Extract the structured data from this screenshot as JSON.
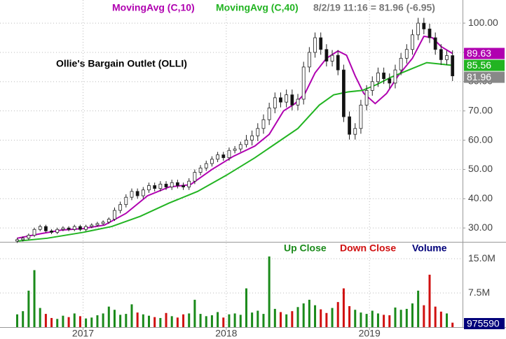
{
  "chart_data": {
    "type": "candlestick",
    "title": "Ollie's Bargain Outlet (OLLI)",
    "header": "8/2/19 11:16 = 81.96 (-6.95)",
    "x": [
      2016.54,
      2016.58,
      2016.62,
      2016.66,
      2016.7,
      2016.74,
      2016.78,
      2016.82,
      2016.86,
      2016.9,
      2016.94,
      2016.98,
      2017.02,
      2017.06,
      2017.1,
      2017.14,
      2017.18,
      2017.22,
      2017.26,
      2017.3,
      2017.34,
      2017.38,
      2017.42,
      2017.46,
      2017.5,
      2017.54,
      2017.58,
      2017.62,
      2017.66,
      2017.7,
      2017.74,
      2017.78,
      2017.82,
      2017.86,
      2017.9,
      2017.94,
      2017.98,
      2018.02,
      2018.06,
      2018.1,
      2018.14,
      2018.18,
      2018.22,
      2018.26,
      2018.3,
      2018.34,
      2018.38,
      2018.42,
      2018.46,
      2018.5,
      2018.54,
      2018.58,
      2018.62,
      2018.66,
      2018.7,
      2018.74,
      2018.78,
      2018.82,
      2018.86,
      2018.9,
      2018.94,
      2018.98,
      2019.02,
      2019.06,
      2019.1,
      2019.14,
      2019.18,
      2019.22,
      2019.26,
      2019.3,
      2019.34,
      2019.38,
      2019.42,
      2019.46,
      2019.5,
      2019.54,
      2019.58
    ],
    "open": [
      25.5,
      26.0,
      26.5,
      27.5,
      29.5,
      30.5,
      29.0,
      28.5,
      29.5,
      30.0,
      29.5,
      30.5,
      29.5,
      30.5,
      31.0,
      31.5,
      32.0,
      33.0,
      36.0,
      38.0,
      40.5,
      42.5,
      41.0,
      43.0,
      44.5,
      43.5,
      45.0,
      44.0,
      45.5,
      44.5,
      44.0,
      46.0,
      49.0,
      50.5,
      52.0,
      53.5,
      55.0,
      54.0,
      56.5,
      57.0,
      58.5,
      60.0,
      61.5,
      64.0,
      67.0,
      71.0,
      74.5,
      73.0,
      75.5,
      72.0,
      74.0,
      85.0,
      90.0,
      95.0,
      91.0,
      87.0,
      89.0,
      84.0,
      68.0,
      62.0,
      64.0,
      72.0,
      77.0,
      80.0,
      83.0,
      81.0,
      79.5,
      84.0,
      88.0,
      91.0,
      96.0,
      100.0,
      98.0,
      95.0,
      91.0,
      87.5,
      88.91
    ],
    "high": [
      26.6,
      27.1,
      28.1,
      30.1,
      31.1,
      31.1,
      29.6,
      30.1,
      30.6,
      30.6,
      31.1,
      31.1,
      31.1,
      31.6,
      32.1,
      32.6,
      33.6,
      37,
      39,
      41.5,
      43.5,
      43.5,
      44,
      45.5,
      45.5,
      46,
      46,
      46.5,
      46.5,
      45.5,
      47,
      50,
      51.5,
      53,
      54.5,
      56,
      56,
      57.5,
      58,
      59.5,
      61.8,
      63.3,
      65.8,
      68.8,
      72.8,
      76.3,
      76.3,
      77.3,
      77.3,
      75.8,
      86.8,
      91.8,
      96.8,
      96.8,
      92.8,
      90.8,
      90.8,
      85.8,
      69.8,
      65.8,
      73.8,
      78.8,
      81.8,
      84.8,
      84.8,
      82.8,
      85.8,
      89.8,
      92.8,
      97.8,
      101.8,
      101.8,
      99.8,
      96.8,
      92.8,
      90.7,
      90.7
    ],
    "low": [
      24.9,
      25.4,
      25.9,
      26.9,
      28.9,
      28.4,
      27.9,
      27.9,
      28.9,
      28.9,
      28.9,
      28.9,
      28.9,
      29.9,
      30.4,
      30.9,
      31.4,
      32.4,
      35,
      37,
      39.5,
      40,
      40,
      42,
      42.5,
      42.5,
      43,
      43,
      43.5,
      43,
      43,
      45,
      48,
      49.5,
      51,
      52.5,
      53,
      53,
      55.5,
      56,
      57.5,
      58.2,
      59.7,
      62.2,
      65.2,
      69.2,
      71.2,
      71.2,
      70.2,
      70.2,
      72.2,
      83.2,
      88.2,
      89.2,
      85.2,
      85.2,
      82.2,
      66.2,
      60.2,
      60.2,
      62.2,
      70.2,
      75.2,
      78.2,
      79.2,
      77.7,
      77.7,
      82.2,
      86.2,
      89.2,
      94.2,
      96.2,
      93.2,
      89.2,
      85.7,
      85.7,
      80.2
    ],
    "close": [
      26.0,
      26.5,
      27.5,
      29.5,
      30.5,
      29.0,
      28.5,
      29.5,
      30.0,
      29.5,
      30.5,
      29.5,
      30.5,
      31.0,
      31.5,
      32.0,
      33.0,
      36.0,
      38.0,
      40.5,
      42.5,
      41.0,
      43.0,
      44.5,
      43.5,
      45.0,
      44.0,
      45.5,
      44.5,
      44.0,
      46.0,
      49.0,
      50.5,
      52.0,
      53.5,
      55.0,
      54.0,
      56.5,
      57.0,
      58.5,
      60.0,
      61.5,
      64.0,
      67.0,
      71.0,
      74.5,
      73.0,
      75.5,
      72.0,
      74.0,
      85.0,
      90.0,
      95.0,
      91.0,
      87.0,
      89.0,
      84.0,
      68.0,
      62.0,
      64.0,
      72.0,
      77.0,
      80.0,
      83.0,
      81.0,
      79.5,
      84.0,
      88.0,
      91.0,
      96.0,
      100.0,
      98.0,
      95.0,
      91.0,
      87.5,
      88.91,
      81.96
    ],
    "xlim": [
      2016.42,
      2019.65
    ],
    "xticks": [
      2017,
      2018,
      2019
    ],
    "ylim": [
      25.5,
      107.9
    ],
    "yticks": [
      {
        "value": 100,
        "label": "100.00"
      },
      {
        "value": 90,
        "label": "90.00"
      },
      {
        "value": 80,
        "label": "80.00"
      },
      {
        "value": 70,
        "label": "70.00"
      },
      {
        "value": 60,
        "label": "60.00"
      },
      {
        "value": 50,
        "label": "50.00"
      },
      {
        "value": 40,
        "label": "40.00"
      },
      {
        "value": 30,
        "label": "30.00"
      }
    ],
    "grid": true,
    "up_color": "#ffffff",
    "down_color": "#111111",
    "series": [
      {
        "name": "MovingAvg (C,10)",
        "color": "#b000b0",
        "x": [
          2016.54,
          2016.7,
          2016.85,
          2017.0,
          2017.15,
          2017.3,
          2017.45,
          2017.6,
          2017.75,
          2017.9,
          2018.05,
          2018.2,
          2018.3,
          2018.4,
          2018.48,
          2018.55,
          2018.62,
          2018.7,
          2018.78,
          2018.84,
          2018.9,
          2018.96,
          2019.04,
          2019.12,
          2019.2,
          2019.3,
          2019.38,
          2019.44,
          2019.5,
          2019.58
        ],
        "values": [
          26.5,
          28,
          29.3,
          29.8,
          31,
          35,
          41,
          44,
          44.8,
          50,
          54.5,
          58,
          62,
          70,
          72.5,
          76,
          83,
          88,
          90.5,
          89,
          82,
          76,
          72.5,
          76,
          82,
          88,
          95.5,
          95,
          92,
          89.63
        ]
      },
      {
        "name": "MovingAvg (C,40)",
        "color": "#22b422",
        "x": [
          2016.54,
          2016.75,
          2017.0,
          2017.2,
          2017.4,
          2017.6,
          2017.8,
          2018.0,
          2018.2,
          2018.35,
          2018.5,
          2018.65,
          2018.75,
          2018.85,
          2018.95,
          2019.05,
          2019.15,
          2019.3,
          2019.4,
          2019.5,
          2019.58
        ],
        "values": [
          25.5,
          26.5,
          28.5,
          30.5,
          34,
          38.5,
          42.5,
          48,
          54,
          59,
          64,
          72,
          75.5,
          76.5,
          77,
          79,
          81.5,
          84.5,
          86.5,
          86,
          85.56
        ]
      }
    ],
    "volume": {
      "values": [
        2800000,
        3500000,
        8000000,
        12500000,
        4200000,
        2900000,
        2000000,
        1800000,
        2500000,
        2200000,
        3000000,
        2400000,
        1900000,
        2100000,
        2600000,
        3000000,
        4500000,
        3800000,
        2700000,
        2900000,
        5000000,
        3200000,
        2800000,
        2500000,
        2200000,
        2000000,
        3100000,
        2400000,
        2100000,
        2800000,
        3000000,
        6000000,
        2900000,
        2400000,
        2600000,
        3300000,
        2100000,
        2800000,
        3000000,
        2700000,
        8500000,
        3200000,
        3600000,
        2900000,
        15500000,
        4000000,
        3300000,
        2800000,
        3500000,
        4400000,
        5200000,
        6000000,
        4800000,
        3900000,
        3100000,
        4200000,
        5500000,
        8500000,
        4600000,
        3800000,
        3200000,
        2900000,
        3600000,
        3000000,
        2700000,
        2600000,
        4300000,
        3800000,
        4000000,
        5200000,
        8000000,
        4800000,
        11500000,
        4500000,
        3400000,
        3000000,
        975590
      ],
      "ylim": [
        0,
        18400000
      ],
      "yticks": [
        {
          "value": 15000000,
          "label": "15.0M"
        },
        {
          "value": 7500000,
          "label": "7.5M"
        }
      ],
      "legend": [
        {
          "name": "Up Close",
          "color": "#1a8a1a"
        },
        {
          "name": "Down Close",
          "color": "#d01010"
        },
        {
          "name": "Volume",
          "color": "#00007a"
        }
      ],
      "last_color": "#00007a"
    }
  }
}
